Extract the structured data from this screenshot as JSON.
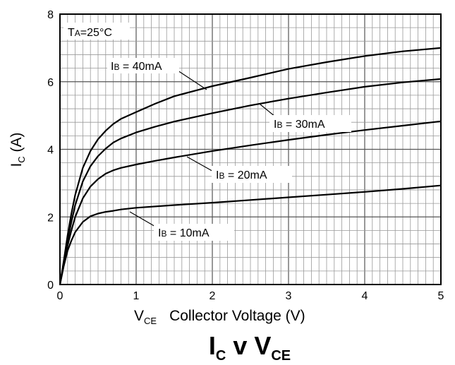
{
  "chart_data": {
    "type": "line",
    "title": {
      "main": "I",
      "sub": "C",
      "mid": " v V",
      "sub2": "CE"
    },
    "xlabel": {
      "prefix": "V",
      "sub": "CE",
      "text": "Collector Voltage (V)"
    },
    "ylabel": {
      "prefix": "I",
      "sub": "C",
      "text": " (A)"
    },
    "xlim": [
      0,
      5
    ],
    "ylim": [
      0,
      8
    ],
    "x_ticks": [
      "0",
      "1",
      "2",
      "3",
      "4",
      "5"
    ],
    "y_ticks": [
      "0",
      "2",
      "4",
      "6",
      "8"
    ],
    "grid": true,
    "condition": {
      "prefix": "T",
      "sub": "A",
      "text": "=25°C"
    },
    "series": [
      {
        "name": "IB = 10mA",
        "label": {
          "prefix": "I",
          "sub": "B",
          "text": " = 10mA"
        },
        "x": [
          0,
          0.05,
          0.1,
          0.15,
          0.2,
          0.3,
          0.4,
          0.5,
          0.6,
          0.7,
          0.8,
          1.0,
          1.5,
          2.0,
          2.5,
          3.0,
          3.5,
          4.0,
          4.5,
          5.0
        ],
        "y": [
          0,
          0.55,
          1.0,
          1.3,
          1.55,
          1.85,
          2.02,
          2.1,
          2.15,
          2.18,
          2.22,
          2.27,
          2.35,
          2.42,
          2.5,
          2.58,
          2.66,
          2.74,
          2.83,
          2.93
        ]
      },
      {
        "name": "IB = 20mA",
        "label": {
          "prefix": "I",
          "sub": "B",
          "text": " = 20mA"
        },
        "x": [
          0,
          0.05,
          0.1,
          0.15,
          0.2,
          0.3,
          0.4,
          0.5,
          0.6,
          0.7,
          0.8,
          1.0,
          1.25,
          1.5,
          2.0,
          2.5,
          3.0,
          3.5,
          4.0,
          4.5,
          5.0
        ],
        "y": [
          0,
          0.6,
          1.15,
          1.6,
          2.0,
          2.55,
          2.9,
          3.12,
          3.28,
          3.38,
          3.45,
          3.55,
          3.66,
          3.76,
          3.95,
          4.12,
          4.28,
          4.43,
          4.57,
          4.7,
          4.83
        ]
      },
      {
        "name": "IB = 30mA",
        "label": {
          "prefix": "I",
          "sub": "B",
          "text": " = 30mA"
        },
        "x": [
          0,
          0.05,
          0.1,
          0.15,
          0.2,
          0.3,
          0.4,
          0.5,
          0.6,
          0.7,
          0.8,
          1.0,
          1.25,
          1.5,
          2.0,
          2.5,
          3.0,
          3.5,
          4.0,
          4.5,
          5.0
        ],
        "y": [
          0,
          0.65,
          1.3,
          1.85,
          2.35,
          3.05,
          3.5,
          3.8,
          4.02,
          4.2,
          4.32,
          4.5,
          4.67,
          4.82,
          5.07,
          5.3,
          5.5,
          5.68,
          5.85,
          5.98,
          6.08
        ]
      },
      {
        "name": "IB = 40mA",
        "label": {
          "prefix": "I",
          "sub": "B",
          "text": " = 40mA"
        },
        "x": [
          0,
          0.05,
          0.1,
          0.15,
          0.2,
          0.3,
          0.4,
          0.5,
          0.6,
          0.7,
          0.8,
          1.0,
          1.25,
          1.5,
          2.0,
          2.5,
          3.0,
          3.5,
          4.0,
          4.5,
          5.0
        ],
        "y": [
          0,
          0.7,
          1.45,
          2.1,
          2.65,
          3.45,
          3.95,
          4.3,
          4.55,
          4.75,
          4.9,
          5.1,
          5.35,
          5.57,
          5.87,
          6.12,
          6.38,
          6.58,
          6.76,
          6.9,
          7.0
        ]
      }
    ]
  }
}
